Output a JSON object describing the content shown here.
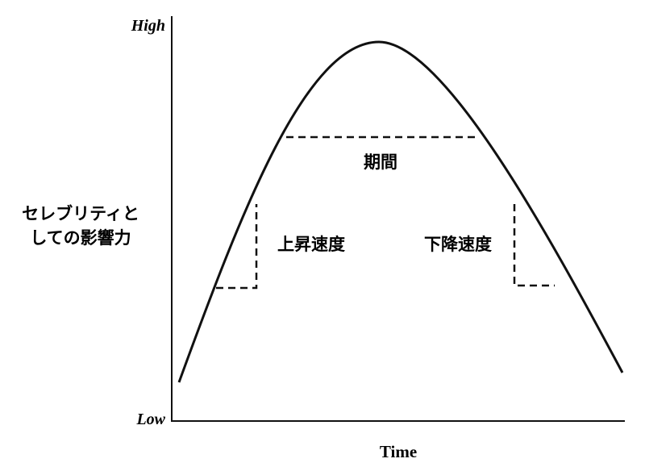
{
  "axis": {
    "y_high": "High",
    "y_low": "Low",
    "x_label": "Time",
    "y_label": [
      "セレブリティと",
      "しての影響力"
    ]
  },
  "annotations": {
    "duration": "期間",
    "rise_speed": "上昇速度",
    "fall_speed": "下降速度"
  }
}
